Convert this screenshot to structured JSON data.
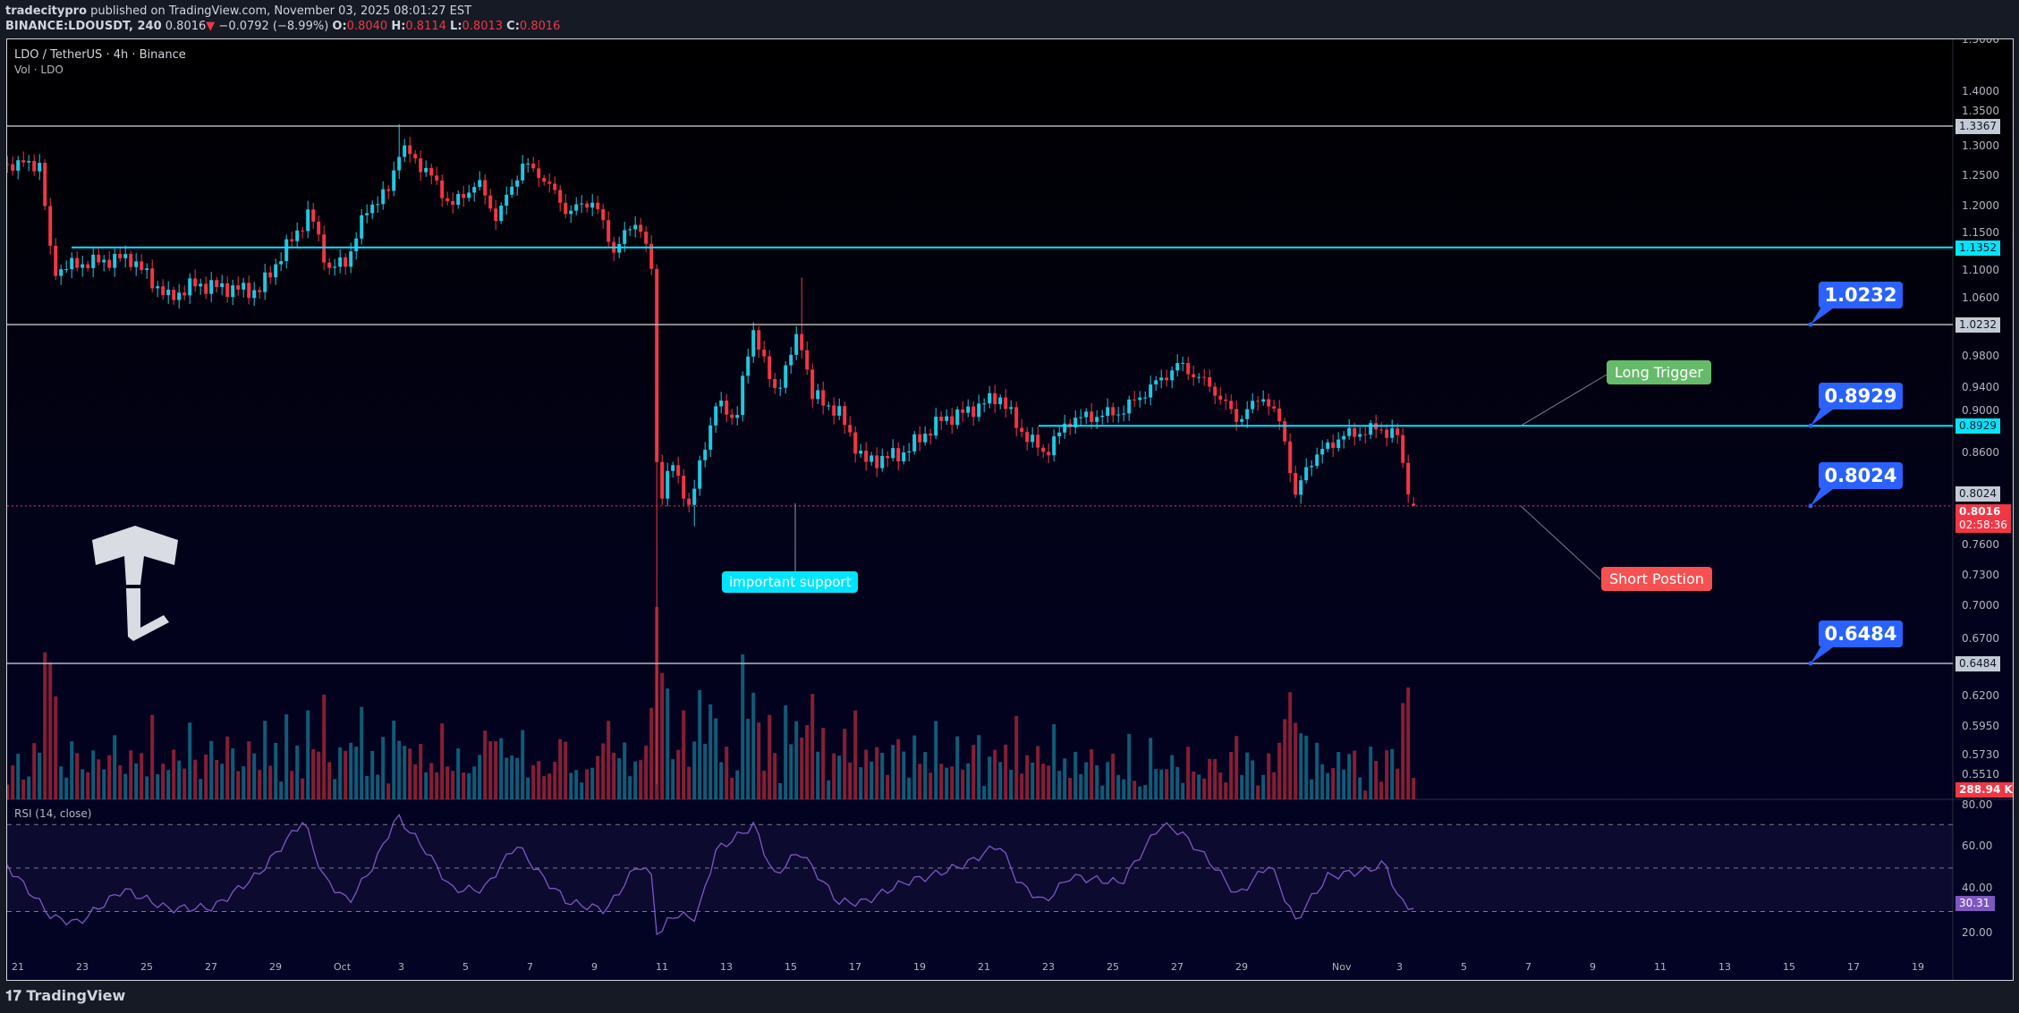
{
  "header": {
    "author": "tradecitypro",
    "published": "published on TradingView.com, November 03, 2025 08:01:27 EST",
    "symbol": "BINANCE:LDOUSDT, 240",
    "last": "0.8016",
    "change": "−0.0792 (−8.99%)",
    "o_label": "O:",
    "o": "0.8040",
    "h_label": "H:",
    "h": "0.8114",
    "l_label": "L:",
    "l": "0.8013",
    "c_label": "C:",
    "c": "0.8016"
  },
  "legend": {
    "title": "LDO / TetherUS · 4h · Binance",
    "volume": "Vol · LDO",
    "rsi": "RSI (14, close)"
  },
  "footer": {
    "brand": "TradingView"
  },
  "colors": {
    "up": "#22c7e0",
    "down": "#f23645",
    "cyan_line": "#00e5ff",
    "gray_line": "#b2b5be",
    "callout": "#2962ff",
    "rsi": "#7e57c2",
    "long": "#66bb6a",
    "short": "#f75050",
    "support": "#00e5ff"
  },
  "chart_data": {
    "type": "candlestick",
    "title": "LDO / TetherUS · 4h · Binance",
    "x_unit": "days since Sep 21, 2025",
    "y_scale": "log",
    "ylim": [
      0.551,
      1.5
    ],
    "price_ticks": [
      "1.5000",
      "1.4000",
      "1.3500",
      "1.3000",
      "1.2500",
      "1.2000",
      "1.1500",
      "1.1000",
      "1.0600",
      "0.9800",
      "0.9400",
      "0.9000",
      "0.8600",
      "0.7600",
      "0.7300",
      "0.7000",
      "0.6700",
      "0.6200",
      "0.5950",
      "0.5730",
      "0.5510"
    ],
    "time_ticks": [
      {
        "day": 0,
        "label": "21"
      },
      {
        "day": 2,
        "label": "23"
      },
      {
        "day": 4,
        "label": "25"
      },
      {
        "day": 6,
        "label": "27"
      },
      {
        "day": 8,
        "label": "29"
      },
      {
        "day": 10,
        "label": "Oct"
      },
      {
        "day": 12,
        "label": "3"
      },
      {
        "day": 14,
        "label": "5"
      },
      {
        "day": 16,
        "label": "7"
      },
      {
        "day": 18,
        "label": "9"
      },
      {
        "day": 20,
        "label": "11"
      },
      {
        "day": 22,
        "label": "13"
      },
      {
        "day": 24,
        "label": "15"
      },
      {
        "day": 26,
        "label": "17"
      },
      {
        "day": 28,
        "label": "19"
      },
      {
        "day": 30,
        "label": "21"
      },
      {
        "day": 32,
        "label": "23"
      },
      {
        "day": 34,
        "label": "25"
      },
      {
        "day": 36,
        "label": "27"
      },
      {
        "day": 38,
        "label": "29"
      },
      {
        "day": 41,
        "label": "Nov"
      },
      {
        "day": 43,
        "label": "3"
      },
      {
        "day": 45,
        "label": "5"
      },
      {
        "day": 47,
        "label": "7"
      },
      {
        "day": 49,
        "label": "9"
      },
      {
        "day": 51,
        "label": "11"
      },
      {
        "day": 53,
        "label": "13"
      },
      {
        "day": 55,
        "label": "15"
      },
      {
        "day": 57,
        "label": "17"
      },
      {
        "day": 59,
        "label": "19"
      }
    ],
    "price_path": [
      [
        -0.3,
        1.27
      ],
      [
        0.7,
        1.27
      ],
      [
        1.1,
        1.1
      ],
      [
        1.9,
        1.11
      ],
      [
        3.5,
        1.12
      ],
      [
        4.7,
        1.06
      ],
      [
        5.5,
        1.08
      ],
      [
        7.5,
        1.07
      ],
      [
        8.3,
        1.13
      ],
      [
        9.1,
        1.19
      ],
      [
        9.7,
        1.1
      ],
      [
        10.3,
        1.12
      ],
      [
        10.9,
        1.2
      ],
      [
        11.5,
        1.22
      ],
      [
        11.9,
        1.3
      ],
      [
        12.7,
        1.26
      ],
      [
        13.5,
        1.2
      ],
      [
        14.3,
        1.24
      ],
      [
        14.9,
        1.18
      ],
      [
        15.7,
        1.27
      ],
      [
        16.3,
        1.25
      ],
      [
        17.1,
        1.19
      ],
      [
        17.9,
        1.21
      ],
      [
        18.5,
        1.13
      ],
      [
        19.3,
        1.18
      ],
      [
        19.7,
        1.1
      ],
      [
        19.9,
        0.8
      ],
      [
        20.3,
        0.85
      ],
      [
        20.9,
        0.8
      ],
      [
        21.7,
        0.92
      ],
      [
        22.3,
        0.9
      ],
      [
        22.9,
        1.02
      ],
      [
        23.5,
        0.93
      ],
      [
        24.3,
        1.01
      ],
      [
        24.7,
        0.93
      ],
      [
        25.5,
        0.91
      ],
      [
        26.3,
        0.85
      ],
      [
        27.5,
        0.86
      ],
      [
        28.7,
        0.9
      ],
      [
        29.5,
        0.91
      ],
      [
        30.5,
        0.93
      ],
      [
        31.1,
        0.89
      ],
      [
        31.9,
        0.86
      ],
      [
        32.7,
        0.9
      ],
      [
        34.3,
        0.91
      ],
      [
        35.5,
        0.95
      ],
      [
        36.1,
        0.97
      ],
      [
        37.1,
        0.94
      ],
      [
        37.9,
        0.9
      ],
      [
        38.7,
        0.93
      ],
      [
        39.3,
        0.89
      ],
      [
        39.7,
        0.81
      ],
      [
        40.1,
        0.85
      ],
      [
        41.1,
        0.88
      ],
      [
        42.3,
        0.89
      ],
      [
        42.9,
        0.88
      ],
      [
        43.1,
        0.83
      ],
      [
        43.5,
        0.8016
      ]
    ],
    "wicks": [
      {
        "day": 19.9,
        "low": 0.551
      },
      {
        "day": 24.3,
        "high": 1.09
      },
      {
        "day": 11.9,
        "high": 1.34
      },
      {
        "day": 21.0,
        "low": 0.78
      }
    ],
    "last_candle": {
      "open": 0.804,
      "high": 0.8114,
      "low": 0.8013,
      "close": 0.8016
    },
    "rsi_path": [
      [
        -0.3,
        50.9
      ],
      [
        1.1,
        27.2
      ],
      [
        1.9,
        24.8
      ],
      [
        3.3,
        40.2
      ],
      [
        4.7,
        31.3
      ],
      [
        6.1,
        31.9
      ],
      [
        7.5,
        47.3
      ],
      [
        8.9,
        72.2
      ],
      [
        9.5,
        46.1
      ],
      [
        10.3,
        34.3
      ],
      [
        11.1,
        52.1
      ],
      [
        11.8,
        74.0
      ],
      [
        12.7,
        58.0
      ],
      [
        13.5,
        40.2
      ],
      [
        14.5,
        40.2
      ],
      [
        15.5,
        61.0
      ],
      [
        16.3,
        46.1
      ],
      [
        17.1,
        34.3
      ],
      [
        18.3,
        30.7
      ],
      [
        19.3,
        52.1
      ],
      [
        19.7,
        46.1
      ],
      [
        19.9,
        16.6
      ],
      [
        20.3,
        28.4
      ],
      [
        21.1,
        27.2
      ],
      [
        21.7,
        58.0
      ],
      [
        22.9,
        69.9
      ],
      [
        23.5,
        46.1
      ],
      [
        24.3,
        58.0
      ],
      [
        25.5,
        34.3
      ],
      [
        26.3,
        34.3
      ],
      [
        27.5,
        43.2
      ],
      [
        28.3,
        46.1
      ],
      [
        29.5,
        52.1
      ],
      [
        30.5,
        61.0
      ],
      [
        31.1,
        43.2
      ],
      [
        31.9,
        34.3
      ],
      [
        32.7,
        46.1
      ],
      [
        34.3,
        43.2
      ],
      [
        35.5,
        69.9
      ],
      [
        36.1,
        66.9
      ],
      [
        37.1,
        52.1
      ],
      [
        37.9,
        37.2
      ],
      [
        38.9,
        52.1
      ],
      [
        39.7,
        25.4
      ],
      [
        40.1,
        34.3
      ],
      [
        40.7,
        46.1
      ],
      [
        41.9,
        49.0
      ],
      [
        42.5,
        52.1
      ],
      [
        42.9,
        35.5
      ],
      [
        43.5,
        30.3
      ]
    ],
    "rsi_ticks": [
      "80.00",
      "60.00",
      "40.00",
      "20.00"
    ],
    "rsi_levels": [
      70,
      50,
      30
    ],
    "horizontal_levels": [
      {
        "price": 1.3367,
        "label": "1.3367",
        "style": "gray"
      },
      {
        "price": 1.1352,
        "label": "1.1352",
        "style": "cyan"
      },
      {
        "price": 1.0232,
        "label": "1.0232",
        "style": "gray"
      },
      {
        "price": 0.8929,
        "label": "0.8929",
        "style": "cyan"
      },
      {
        "price": 0.8024,
        "label": "0.8024",
        "style": "gray-tag"
      },
      {
        "price": 0.6484,
        "label": "0.6484",
        "style": "gray"
      }
    ],
    "callouts": [
      "1.0232",
      "0.8929",
      "0.8024",
      "0.6484"
    ],
    "annotations": {
      "long": "Long Trigger",
      "short": "Short Postion",
      "support": "important support"
    },
    "current_price": "0.8016",
    "countdown": "02:58:36",
    "volume_last": "288.94 K",
    "rsi_last": "30.31"
  }
}
